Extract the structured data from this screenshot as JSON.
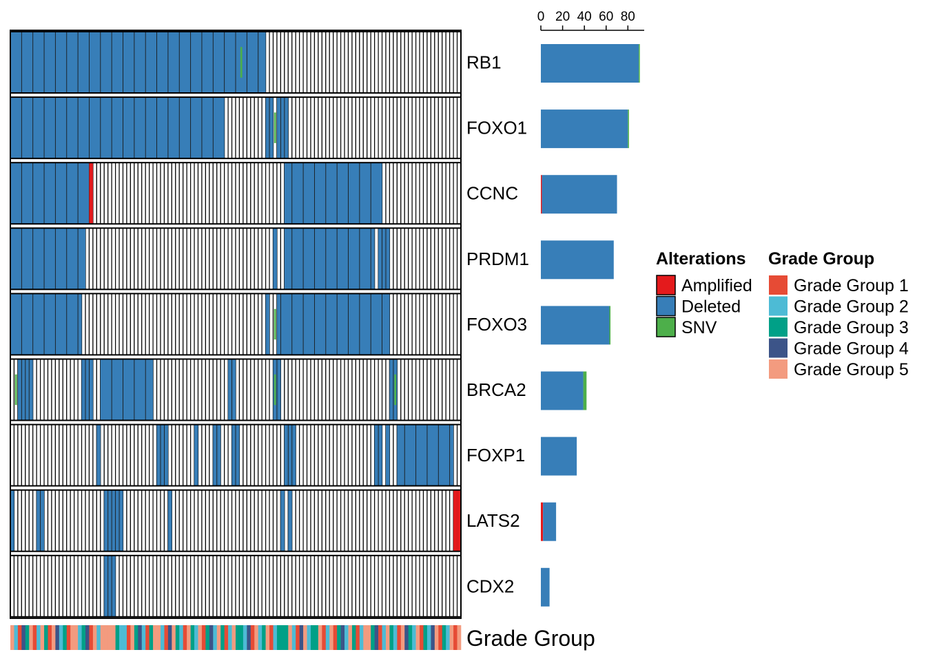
{
  "chart_data": {
    "type": "heatmap",
    "subtype": "oncoprint",
    "genes": [
      "RB1",
      "FOXO1",
      "CCNC",
      "PRDM1",
      "FOXO3",
      "BRCA2",
      "FOXP1",
      "LATS2",
      "CDX2"
    ],
    "n_samples": 120,
    "alteration_counts": [
      {
        "gene": "RB1",
        "Amplified": 0,
        "Deleted": 90,
        "SNV": 1
      },
      {
        "gene": "FOXO1",
        "Amplified": 0,
        "Deleted": 80,
        "SNV": 1
      },
      {
        "gene": "CCNC",
        "Amplified": 1,
        "Deleted": 69,
        "SNV": 0
      },
      {
        "gene": "PRDM1",
        "Amplified": 0,
        "Deleted": 67,
        "SNV": 0
      },
      {
        "gene": "FOXO3",
        "Amplified": 0,
        "Deleted": 63,
        "SNV": 1
      },
      {
        "gene": "BRCA2",
        "Amplified": 0,
        "Deleted": 39,
        "SNV": 3
      },
      {
        "gene": "FOXP1",
        "Amplified": 0,
        "Deleted": 33,
        "SNV": 0
      },
      {
        "gene": "LATS2",
        "Amplified": 2,
        "Deleted": 12,
        "SNV": 0
      },
      {
        "gene": "CDX2",
        "Amplified": 0,
        "Deleted": 8,
        "SNV": 0
      }
    ],
    "barplot_axis": {
      "ticks": [
        "0",
        "20",
        "40",
        "60",
        "80"
      ],
      "range": [
        0,
        95
      ],
      "position": "top"
    },
    "matrix": {
      "RB1": {
        "deleted_ranges": [
          [
            0,
            67
          ]
        ],
        "snv": [
          61
        ],
        "amplified": []
      },
      "FOXO1": {
        "deleted_ranges": [
          [
            0,
            56
          ],
          [
            68,
            69
          ],
          [
            71,
            73
          ]
        ],
        "snv": [
          70
        ],
        "amplified": []
      },
      "CCNC": {
        "deleted_ranges": [
          [
            0,
            21
          ],
          [
            73,
            98
          ]
        ],
        "snv": [],
        "amplified": [
          21
        ]
      },
      "PRDM1": {
        "deleted_ranges": [
          [
            0,
            19
          ],
          [
            70,
            70
          ],
          [
            73,
            96
          ],
          [
            98,
            100
          ]
        ],
        "snv": [],
        "amplified": []
      },
      "FOXO3": {
        "deleted_ranges": [
          [
            0,
            18
          ],
          [
            68,
            68
          ],
          [
            71,
            100
          ]
        ],
        "snv": [
          70
        ],
        "amplified": []
      },
      "BRCA2": {
        "deleted_ranges": [
          [
            2,
            5
          ],
          [
            19,
            21
          ],
          [
            24,
            37
          ],
          [
            58,
            59
          ],
          [
            70,
            71
          ],
          [
            101,
            102
          ]
        ],
        "snv": [
          1,
          70,
          102
        ],
        "amplified": []
      },
      "FOXP1": {
        "deleted_ranges": [
          [
            23,
            23
          ],
          [
            39,
            41
          ],
          [
            49,
            49
          ],
          [
            54,
            55
          ],
          [
            59,
            60
          ],
          [
            73,
            75
          ],
          [
            97,
            98
          ],
          [
            100,
            100
          ],
          [
            103,
            117
          ]
        ],
        "snv": [],
        "amplified": []
      },
      "LATS2": {
        "deleted_ranges": [
          [
            0,
            0
          ],
          [
            7,
            8
          ],
          [
            25,
            29
          ],
          [
            42,
            42
          ],
          [
            72,
            72
          ],
          [
            74,
            74
          ]
        ],
        "snv": [],
        "amplified": [
          118,
          119
        ]
      },
      "CDX2": {
        "deleted_ranges": [
          [
            25,
            27
          ]
        ],
        "snv": [],
        "amplified": []
      }
    },
    "annotation": {
      "label": "Grade Group",
      "sequence": [
        5,
        2,
        1,
        4,
        3,
        5,
        1,
        2,
        5,
        3,
        1,
        5,
        4,
        2,
        3,
        1,
        5,
        5,
        2,
        3,
        4,
        1,
        5,
        2,
        5,
        5,
        5,
        5,
        3,
        2,
        2,
        1,
        5,
        3,
        4,
        2,
        1,
        3,
        5,
        5,
        2,
        1,
        4,
        5,
        3,
        2,
        1,
        5,
        3,
        2,
        5,
        1,
        3,
        4,
        2,
        5,
        3,
        1,
        2,
        5,
        3,
        3,
        2,
        4,
        1,
        5,
        2,
        3,
        5,
        1,
        2,
        3,
        3,
        3,
        5,
        2,
        1,
        4,
        5,
        2,
        3,
        3,
        5,
        1,
        2,
        5,
        1,
        3,
        4,
        2,
        5,
        3,
        1,
        2,
        5,
        5,
        3,
        4,
        1,
        2,
        5,
        3,
        2,
        1,
        5,
        4,
        3,
        2,
        5,
        1,
        3,
        2,
        4,
        5,
        1,
        3,
        2,
        5,
        1,
        5
      ]
    },
    "legends": [
      {
        "title": "Alterations",
        "items": [
          {
            "label": "Amplified",
            "color": "#E41A1C"
          },
          {
            "label": "Deleted",
            "color": "#377EB8"
          },
          {
            "label": "SNV",
            "color": "#4DAF4A"
          }
        ]
      },
      {
        "title": "Grade Group",
        "items": [
          {
            "label": "Grade Group 1",
            "color": "#E64B35"
          },
          {
            "label": "Grade Group 2",
            "color": "#4DBBD5"
          },
          {
            "label": "Grade Group 3",
            "color": "#00A087"
          },
          {
            "label": "Grade Group 4",
            "color": "#3C5488"
          },
          {
            "label": "Grade Group 5",
            "color": "#F39B7F"
          }
        ]
      }
    ],
    "colors": {
      "amplified": "#E41A1C",
      "deleted": "#377EB8",
      "snv": "#4DAF4A",
      "background": "#FFFFFF",
      "border": "#000000"
    }
  }
}
